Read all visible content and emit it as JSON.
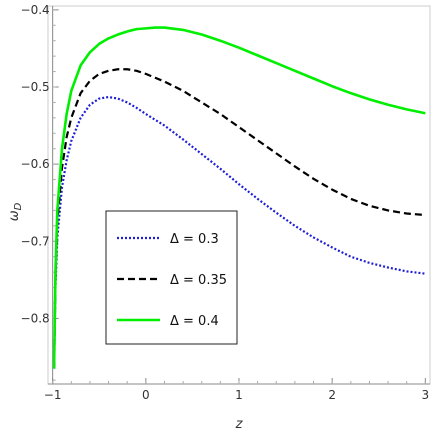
{
  "chart_data": {
    "type": "line",
    "title": "",
    "xlabel": "z",
    "ylabel": "ωD",
    "ylabel_main": "ω",
    "ylabel_sub": "D",
    "xlim": [
      -1.05,
      3.05
    ],
    "ylim": [
      -0.885,
      -0.395
    ],
    "xticks": [
      -1,
      0,
      1,
      2,
      3
    ],
    "xtick_labels": [
      "−1",
      "0",
      "1",
      "2",
      "3"
    ],
    "yticks": [
      -0.4,
      -0.5,
      -0.6,
      -0.7,
      -0.8
    ],
    "ytick_labels": [
      "−0.4",
      "−0.5",
      "−0.6",
      "−0.7",
      "−0.8"
    ],
    "grid": false,
    "legend_position": "lower-left inside",
    "series": [
      {
        "name": "Δ = 0.3",
        "color": "#1f1fd6",
        "style": "dotted",
        "x": [
          -0.985,
          -0.97,
          -0.95,
          -0.9,
          -0.85,
          -0.8,
          -0.7,
          -0.6,
          -0.5,
          -0.4,
          -0.3,
          -0.2,
          -0.1,
          0,
          0.2,
          0.4,
          0.6,
          0.8,
          1.0,
          1.2,
          1.4,
          1.6,
          1.8,
          2.0,
          2.2,
          2.4,
          2.6,
          2.8,
          3.0
        ],
        "y": [
          -0.865,
          -0.76,
          -0.695,
          -0.63,
          -0.595,
          -0.57,
          -0.54,
          -0.523,
          -0.515,
          -0.513,
          -0.515,
          -0.52,
          -0.527,
          -0.535,
          -0.55,
          -0.568,
          -0.587,
          -0.606,
          -0.626,
          -0.645,
          -0.663,
          -0.68,
          -0.695,
          -0.708,
          -0.72,
          -0.728,
          -0.734,
          -0.739,
          -0.742
        ]
      },
      {
        "name": "Δ = 0.35",
        "color": "#000000",
        "style": "dashed",
        "x": [
          -0.985,
          -0.97,
          -0.95,
          -0.9,
          -0.85,
          -0.8,
          -0.7,
          -0.6,
          -0.5,
          -0.4,
          -0.3,
          -0.2,
          -0.1,
          0,
          0.2,
          0.4,
          0.6,
          0.8,
          1.0,
          1.2,
          1.4,
          1.6,
          1.8,
          2.0,
          2.2,
          2.4,
          2.6,
          2.8,
          3.0
        ],
        "y": [
          -0.865,
          -0.75,
          -0.675,
          -0.605,
          -0.565,
          -0.54,
          -0.508,
          -0.492,
          -0.483,
          -0.479,
          -0.477,
          -0.477,
          -0.479,
          -0.483,
          -0.493,
          -0.505,
          -0.52,
          -0.535,
          -0.552,
          -0.569,
          -0.586,
          -0.603,
          -0.619,
          -0.633,
          -0.645,
          -0.654,
          -0.66,
          -0.664,
          -0.666
        ]
      },
      {
        "name": "Δ = 0.4",
        "color": "#00ee00",
        "style": "solid",
        "x": [
          -0.985,
          -0.97,
          -0.95,
          -0.9,
          -0.85,
          -0.8,
          -0.7,
          -0.6,
          -0.5,
          -0.4,
          -0.3,
          -0.2,
          -0.1,
          0,
          0.1,
          0.2,
          0.4,
          0.6,
          0.8,
          1.0,
          1.2,
          1.4,
          1.6,
          1.8,
          2.0,
          2.2,
          2.4,
          2.6,
          2.8,
          3.0
        ],
        "y": [
          -0.865,
          -0.74,
          -0.66,
          -0.58,
          -0.535,
          -0.505,
          -0.472,
          -0.455,
          -0.444,
          -0.437,
          -0.432,
          -0.428,
          -0.425,
          -0.424,
          -0.423,
          -0.423,
          -0.426,
          -0.432,
          -0.44,
          -0.449,
          -0.459,
          -0.469,
          -0.479,
          -0.489,
          -0.499,
          -0.508,
          -0.516,
          -0.523,
          -0.529,
          -0.534
        ]
      }
    ]
  }
}
